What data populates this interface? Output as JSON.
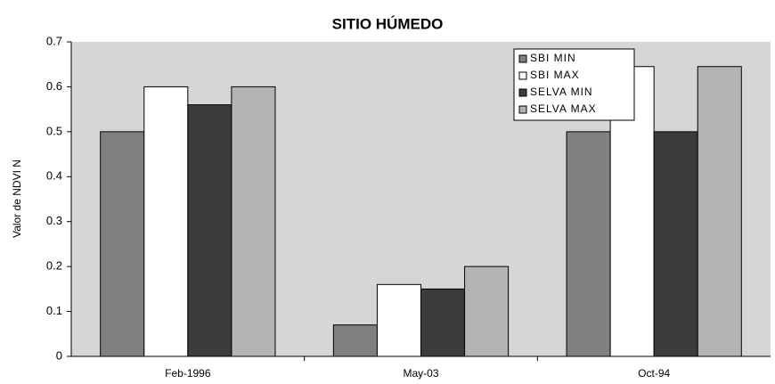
{
  "chart_data": {
    "type": "bar",
    "title": "SITIO HÚMEDO",
    "y_label": "Valor de NDVI N",
    "categories": [
      "Feb-1996",
      "May-03",
      "Oct-94"
    ],
    "series": [
      {
        "name": "SBI MIN",
        "color": "#808080",
        "values": [
          0.5,
          0.07,
          0.5
        ]
      },
      {
        "name": "SBI MAX",
        "color": "#ffffff",
        "values": [
          0.6,
          0.16,
          0.645
        ]
      },
      {
        "name": "SELVA MIN",
        "color": "#3a3c3e",
        "values": [
          0.56,
          0.15,
          0.5
        ]
      },
      {
        "name": "SELVA MAX",
        "color": "#b4b4b6",
        "values": [
          0.6,
          0.2,
          0.645
        ]
      }
    ],
    "ylim": [
      0,
      0.7
    ],
    "yticks": [
      0,
      0.1,
      0.2,
      0.3,
      0.4,
      0.5,
      0.6,
      0.7
    ],
    "grid": false,
    "legend": "upper right"
  }
}
